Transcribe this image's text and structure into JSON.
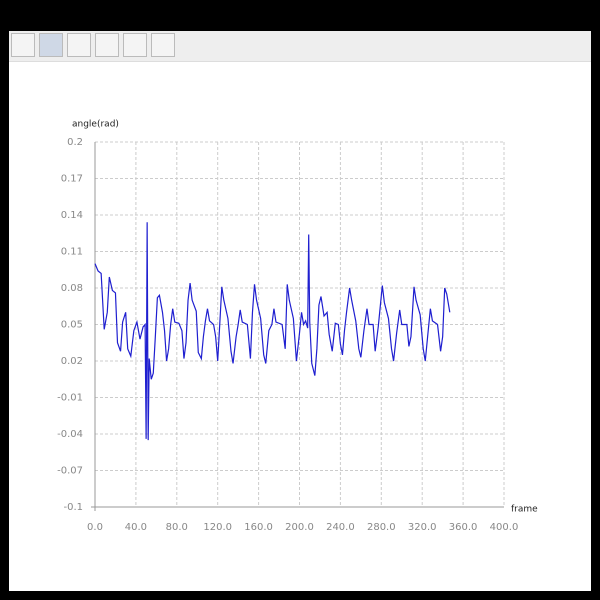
{
  "chart_data": {
    "type": "line",
    "y_label": "angle(rad)",
    "x_label": "frame",
    "x": [
      0,
      3,
      6,
      9,
      12,
      14,
      17,
      20,
      22,
      25,
      27,
      30,
      32,
      35,
      38,
      41,
      44,
      47,
      49,
      50,
      51,
      52,
      53,
      55,
      57,
      59,
      61,
      63,
      66,
      68,
      70,
      72,
      74,
      76,
      78,
      82,
      85,
      87,
      89,
      91,
      93,
      95,
      99,
      101,
      104,
      106,
      108,
      110,
      112,
      116,
      118,
      120,
      122,
      124,
      126,
      130,
      133,
      135,
      138,
      140,
      142,
      144,
      149,
      152,
      154,
      156,
      158,
      162,
      165,
      167,
      170,
      173,
      175,
      177,
      183,
      186,
      188,
      190,
      194,
      197,
      200,
      202,
      204,
      206,
      208,
      209,
      210,
      212,
      215,
      217,
      219,
      221,
      224,
      227,
      229,
      232,
      235,
      238,
      240,
      242,
      244,
      246,
      249,
      251,
      255,
      258,
      260,
      263,
      266,
      268,
      272,
      274,
      277,
      281,
      283,
      287,
      290,
      292,
      295,
      298,
      300,
      305,
      307,
      309,
      312,
      314,
      318,
      321,
      323,
      326,
      328,
      330,
      335,
      338,
      340,
      342,
      344,
      347
    ],
    "series": [
      {
        "color": "#1f1fd0",
        "values": [
          0.1,
          0.094,
          0.092,
          0.046,
          0.06,
          0.089,
          0.078,
          0.076,
          0.035,
          0.028,
          0.052,
          0.06,
          0.03,
          0.024,
          0.045,
          0.052,
          0.038,
          0.048,
          0.05,
          -0.044,
          0.134,
          -0.045,
          0.022,
          0.005,
          0.01,
          0.04,
          0.072,
          0.074,
          0.06,
          0.045,
          0.02,
          0.03,
          0.05,
          0.063,
          0.052,
          0.051,
          0.045,
          0.022,
          0.035,
          0.07,
          0.084,
          0.07,
          0.061,
          0.027,
          0.022,
          0.04,
          0.053,
          0.063,
          0.053,
          0.05,
          0.04,
          0.02,
          0.05,
          0.081,
          0.07,
          0.055,
          0.028,
          0.018,
          0.04,
          0.05,
          0.062,
          0.052,
          0.05,
          0.022,
          0.06,
          0.083,
          0.07,
          0.055,
          0.025,
          0.018,
          0.045,
          0.05,
          0.063,
          0.052,
          0.05,
          0.03,
          0.083,
          0.07,
          0.055,
          0.02,
          0.043,
          0.06,
          0.05,
          0.053,
          0.047,
          0.124,
          0.052,
          0.018,
          0.008,
          0.03,
          0.066,
          0.073,
          0.057,
          0.06,
          0.042,
          0.028,
          0.051,
          0.05,
          0.034,
          0.025,
          0.045,
          0.06,
          0.08,
          0.07,
          0.053,
          0.03,
          0.023,
          0.045,
          0.063,
          0.05,
          0.05,
          0.028,
          0.048,
          0.082,
          0.068,
          0.055,
          0.03,
          0.02,
          0.043,
          0.062,
          0.05,
          0.05,
          0.032,
          0.04,
          0.081,
          0.07,
          0.058,
          0.03,
          0.02,
          0.046,
          0.063,
          0.053,
          0.05,
          0.028,
          0.04,
          0.08,
          0.075,
          0.06
        ]
      }
    ],
    "xlim": [
      0,
      400
    ],
    "ylim": [
      -0.1,
      0.2
    ],
    "xticks": [
      {
        "value": 0,
        "label": "0.0"
      },
      {
        "value": 40,
        "label": "40.0"
      },
      {
        "value": 80,
        "label": "80.0"
      },
      {
        "value": 120,
        "label": "120.0"
      },
      {
        "value": 160,
        "label": "160.0"
      },
      {
        "value": 200,
        "label": "200.0"
      },
      {
        "value": 240,
        "label": "240.0"
      },
      {
        "value": 280,
        "label": "280.0"
      },
      {
        "value": 320,
        "label": "320.0"
      },
      {
        "value": 360,
        "label": "360.0"
      },
      {
        "value": 400,
        "label": "400.0"
      }
    ],
    "yticks": [
      -0.1,
      -0.07,
      -0.04,
      -0.01,
      0.02,
      0.05,
      0.08,
      0.11,
      0.14,
      0.17,
      0.2
    ],
    "grid": true
  }
}
